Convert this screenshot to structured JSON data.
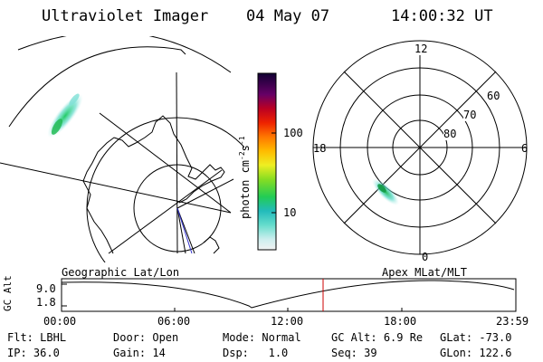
{
  "header": {
    "instrument": "Ultraviolet Imager",
    "date": "04 May 07",
    "time": "14:00:32 UT"
  },
  "colorbar": {
    "label": "photon cm",
    "label_sup1": "-2",
    "label_mid": "s",
    "label_sup2": "-1",
    "ticks": [
      "100",
      "10"
    ]
  },
  "polar_plot": {
    "mlt_labels": {
      "top": "12",
      "left": "18",
      "right": "6",
      "bottom": "0"
    },
    "lat_labels": [
      "60",
      "70",
      "80"
    ]
  },
  "timeline": {
    "left_title": "Geographic Lat/Lon",
    "right_title": "Apex MLat/MLT",
    "ylabel": "GC Alt",
    "ytick_top": "9.0",
    "ytick_bottom": "1.8",
    "xticks": [
      "00:00",
      "06:00",
      "12:00",
      "18:00",
      "23:59"
    ],
    "current_marker_color": "#cc0000"
  },
  "info": {
    "filter_label": "Flt:",
    "filter_value": "LBHL",
    "ip_label": "IP:",
    "ip_value": "36.0",
    "door_label": "Door:",
    "door_value": "Open",
    "gain_label": "Gain:",
    "gain_value": "14",
    "mode_label": "Mode:",
    "mode_value": "Normal",
    "dsp_label": "Dsp:",
    "dsp_value": "1.0",
    "gcalt_label": "GC Alt:",
    "gcalt_value": "6.9 Re",
    "seq_label": "Seq:",
    "seq_value": "39",
    "glat_label": "GLat:",
    "glat_value": "-73.0",
    "glon_label": "GLon:",
    "glon_value": "122.6"
  }
}
